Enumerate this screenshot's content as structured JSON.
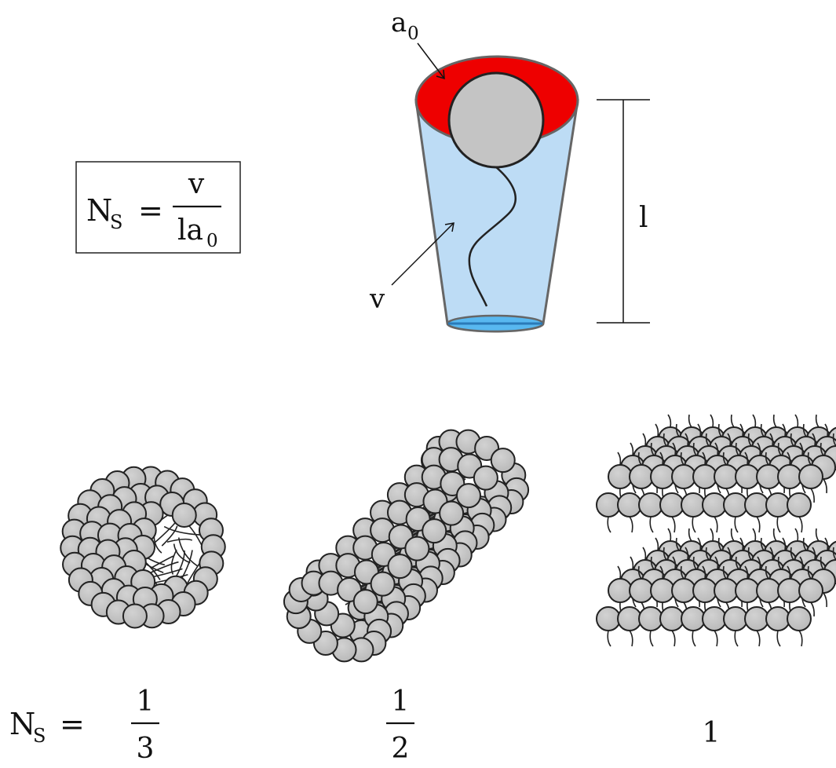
{
  "formula": {
    "lhs": "N",
    "lhs_sub": "S",
    "equals": "=",
    "numerator": "v",
    "denominator": "la",
    "denominator_sub": "0"
  },
  "cone": {
    "head_area_label": "a",
    "head_area_sub": "0",
    "volume_label": "v",
    "length_label": "l"
  },
  "bottom_row": {
    "lhs": "N",
    "lhs_sub": "S",
    "equals": "=",
    "values": [
      {
        "numerator": "1",
        "denominator": "3"
      },
      {
        "numerator": "1",
        "denominator": "2"
      },
      {
        "value": "1"
      }
    ]
  },
  "colors": {
    "head_area": "#ee0000",
    "cone_body": "#bddcf5",
    "cone_base": "#58b8f0",
    "head_group": "#c4c4c4",
    "outline": "#222222"
  }
}
